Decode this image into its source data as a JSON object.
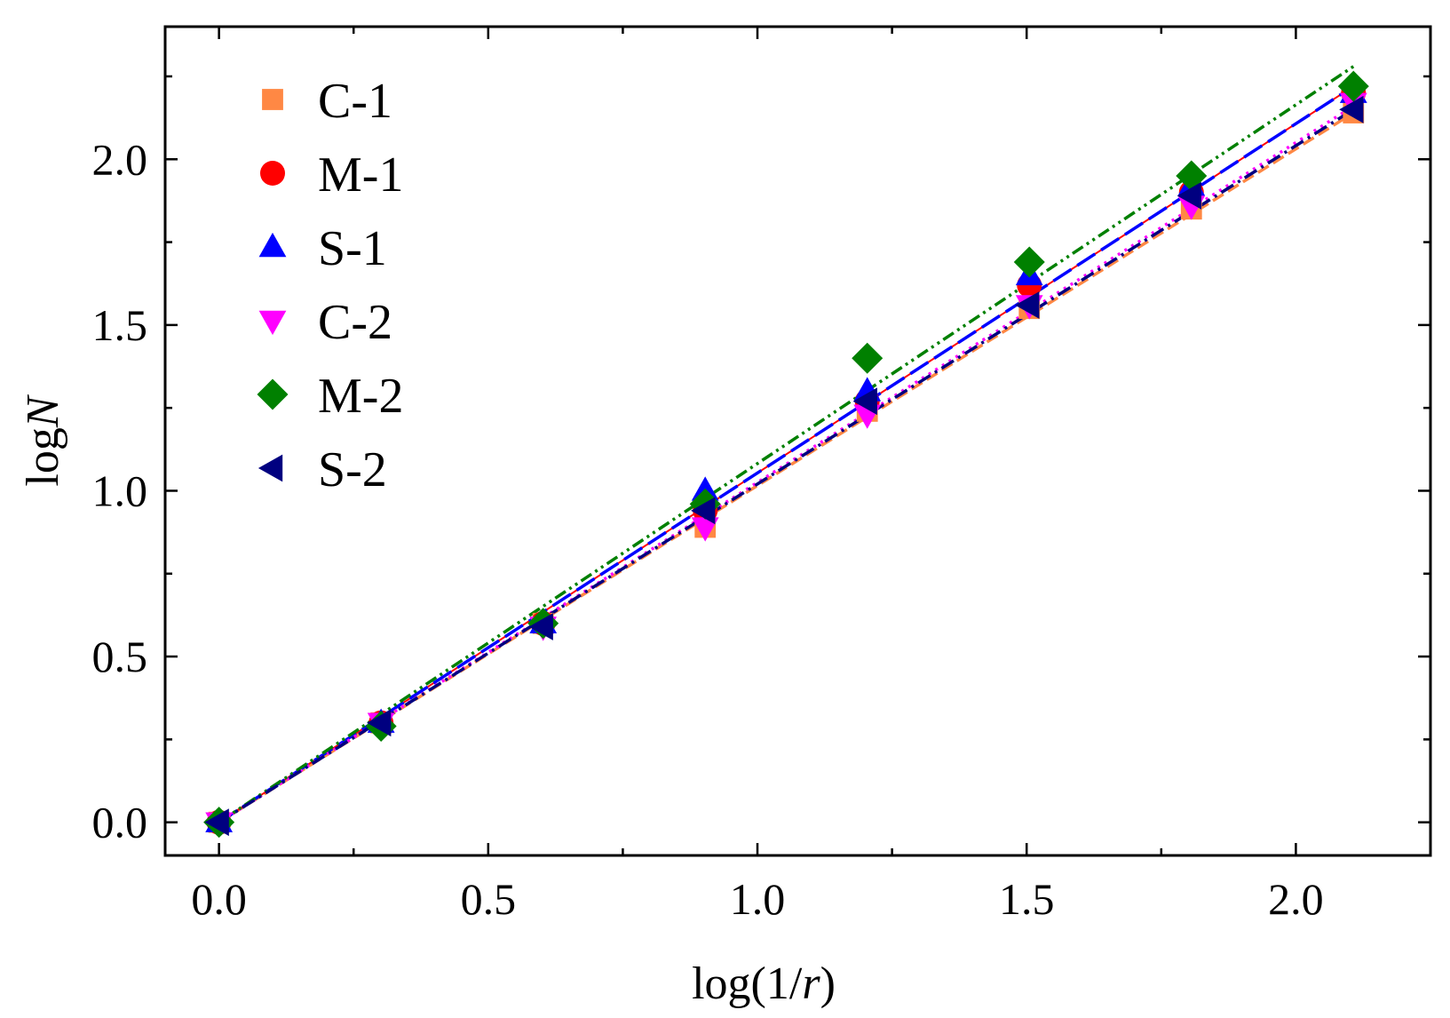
{
  "chart_data": {
    "type": "scatter",
    "xlabel_parts": [
      "log(1/",
      "r",
      ")"
    ],
    "ylabel_parts": [
      "log",
      "N"
    ],
    "xlim": [
      -0.1,
      2.25
    ],
    "ylim": [
      -0.1,
      2.4
    ],
    "xticks": [
      0.0,
      0.5,
      1.0,
      1.5,
      2.0
    ],
    "xtick_labels": [
      "0.0",
      "0.5",
      "1.0",
      "1.5",
      "2.0"
    ],
    "yticks": [
      0.0,
      0.5,
      1.0,
      1.5,
      2.0
    ],
    "ytick_labels": [
      "0.0",
      "0.5",
      "1.0",
      "1.5",
      "2.0"
    ],
    "x": [
      0.0,
      0.301,
      0.602,
      0.903,
      1.204,
      1.505,
      1.806,
      2.107
    ],
    "legend_position": "top-left",
    "series": [
      {
        "name": "C-1",
        "marker": "square",
        "color": "#ff8844",
        "line_style": "dash",
        "values": [
          0.0,
          0.3,
          0.6,
          0.89,
          1.24,
          1.55,
          1.85,
          2.14
        ],
        "fit": [
          0.0,
          2.14
        ]
      },
      {
        "name": "M-1",
        "marker": "circle",
        "color": "#ff0000",
        "line_style": "solid",
        "values": [
          0.0,
          0.3,
          0.6,
          0.94,
          1.27,
          1.62,
          1.9,
          2.2
        ],
        "fit": [
          0.0,
          2.22
        ]
      },
      {
        "name": "S-1",
        "marker": "triangle-up",
        "color": "#0000ff",
        "line_style": "dash-long",
        "values": [
          0.0,
          0.3,
          0.6,
          1.0,
          1.3,
          1.65,
          1.92,
          2.2
        ],
        "fit": [
          0.0,
          2.22
        ]
      },
      {
        "name": "C-2",
        "marker": "triangle-down",
        "color": "#ff00ff",
        "line_style": "dot",
        "values": [
          0.0,
          0.3,
          0.59,
          0.89,
          1.23,
          1.56,
          1.86,
          2.17
        ],
        "fit": [
          0.0,
          2.16
        ]
      },
      {
        "name": "M-2",
        "marker": "diamond",
        "color": "#008000",
        "line_style": "dash-dot-dot",
        "values": [
          0.0,
          0.29,
          0.6,
          0.96,
          1.4,
          1.69,
          1.95,
          2.22
        ],
        "fit": [
          0.0,
          2.28
        ]
      },
      {
        "name": "S-2",
        "marker": "triangle-left",
        "color": "#000080",
        "line_style": "dash-dot",
        "values": [
          0.0,
          0.3,
          0.59,
          0.94,
          1.27,
          1.56,
          1.89,
          2.15
        ],
        "fit": [
          0.0,
          2.15
        ]
      }
    ]
  }
}
